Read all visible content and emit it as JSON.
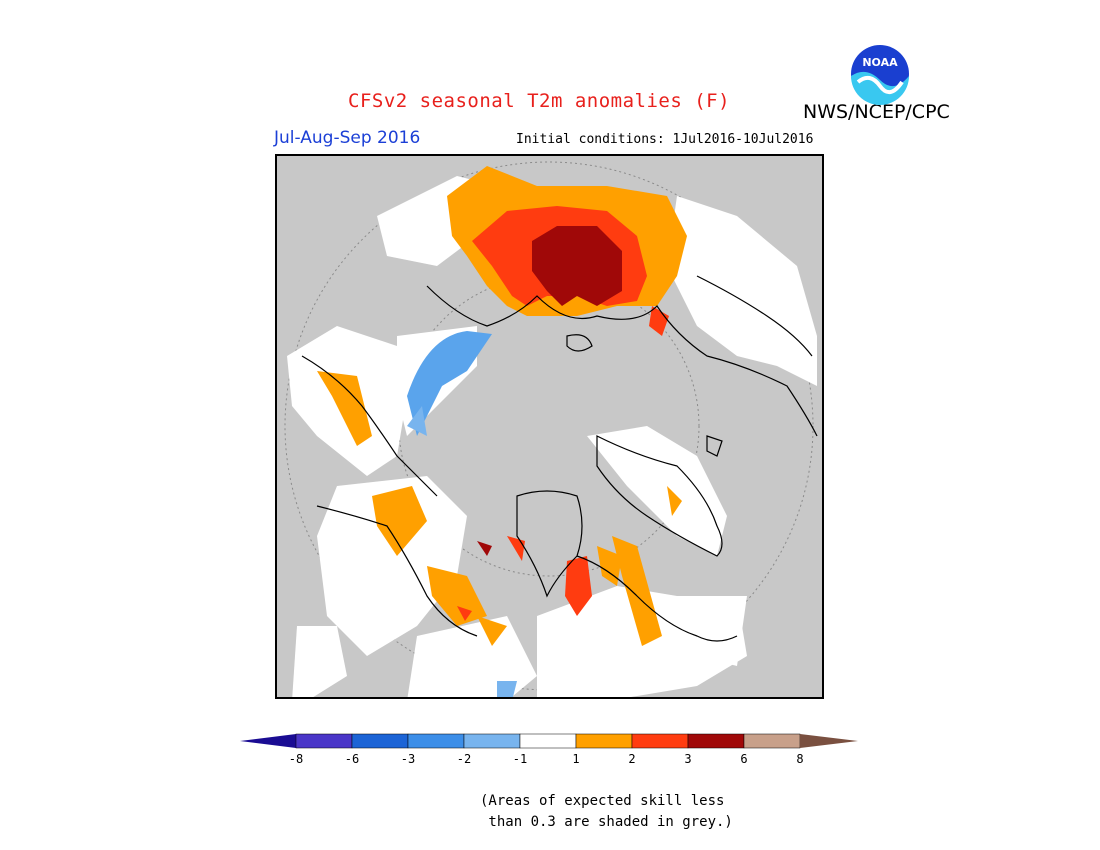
{
  "header": {
    "title": "CFSv2 seasonal T2m anomalies (F)",
    "org": "NWS/NCEP/CPC",
    "season": "Jul-Aug-Sep 2016",
    "initial_conditions": "Initial conditions: 1Jul2016-10Jul2016"
  },
  "logo": {
    "text": "NOAA",
    "icon": "noaa-logo-icon"
  },
  "map": {
    "projection": "north polar stereographic",
    "grey_meaning": "skill < 0.3"
  },
  "colorbar": {
    "ticks": [
      "-8",
      "-6",
      "-3",
      "-2",
      "-1",
      "1",
      "2",
      "3",
      "6",
      "8"
    ],
    "colors": [
      "#1a0c93",
      "#4a36c8",
      "#1c64d6",
      "#3c8ee8",
      "#78b4ee",
      "#ffffff",
      "#ffa000",
      "#ff3c10",
      "#a00808",
      "#c8a08a",
      "#7a5040"
    ]
  },
  "note": {
    "line1": "(Areas of expected skill less",
    "line2": " than 0.3 are shaded in grey.)"
  }
}
